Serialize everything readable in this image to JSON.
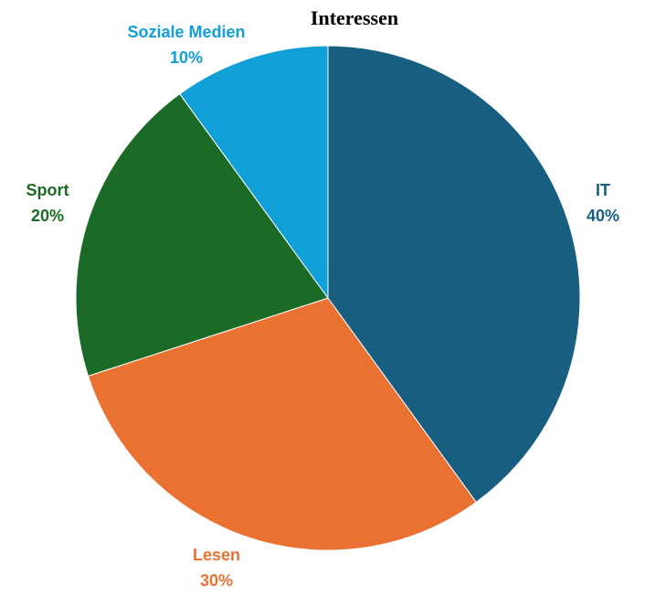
{
  "chart_data": {
    "type": "pie",
    "title": "Interessen",
    "slices": [
      {
        "label": "IT",
        "value": 40,
        "percent_label": "40%",
        "color": "#175e81"
      },
      {
        "label": "Lesen",
        "value": 30,
        "percent_label": "30%",
        "color": "#e97233"
      },
      {
        "label": "Sport",
        "value": 20,
        "percent_label": "20%",
        "color": "#1b6a25"
      },
      {
        "label": "Soziale Medien",
        "value": 10,
        "percent_label": "10%",
        "color": "#119fd8"
      }
    ],
    "start_angle": "12 o'clock",
    "direction": "clockwise",
    "legend": "none",
    "data_labels": "outside"
  }
}
